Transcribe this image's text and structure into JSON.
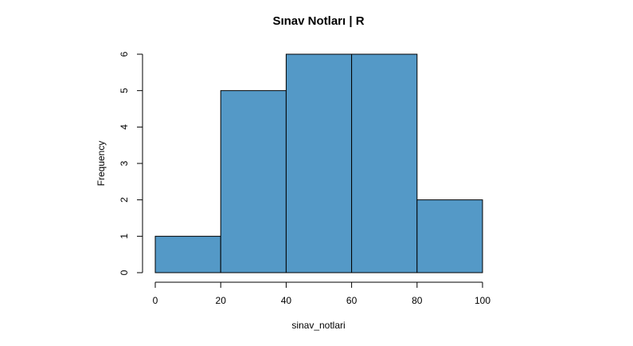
{
  "chart_data": {
    "type": "bar",
    "title": "Sınav Notları | R",
    "xlabel": "sinav_notlari",
    "ylabel": "Frequency",
    "bins": [
      {
        "from": 0,
        "to": 20,
        "count": 1
      },
      {
        "from": 20,
        "to": 40,
        "count": 5
      },
      {
        "from": 40,
        "to": 60,
        "count": 6
      },
      {
        "from": 60,
        "to": 80,
        "count": 6
      },
      {
        "from": 80,
        "to": 100,
        "count": 2
      }
    ],
    "xlim": [
      0,
      100
    ],
    "ylim": [
      0,
      6
    ],
    "x_ticks": [
      "0",
      "20",
      "40",
      "60",
      "80",
      "100"
    ],
    "y_ticks": [
      "0",
      "1",
      "2",
      "3",
      "4",
      "5",
      "6"
    ],
    "bar_color": "#5499c7",
    "grid": false
  }
}
